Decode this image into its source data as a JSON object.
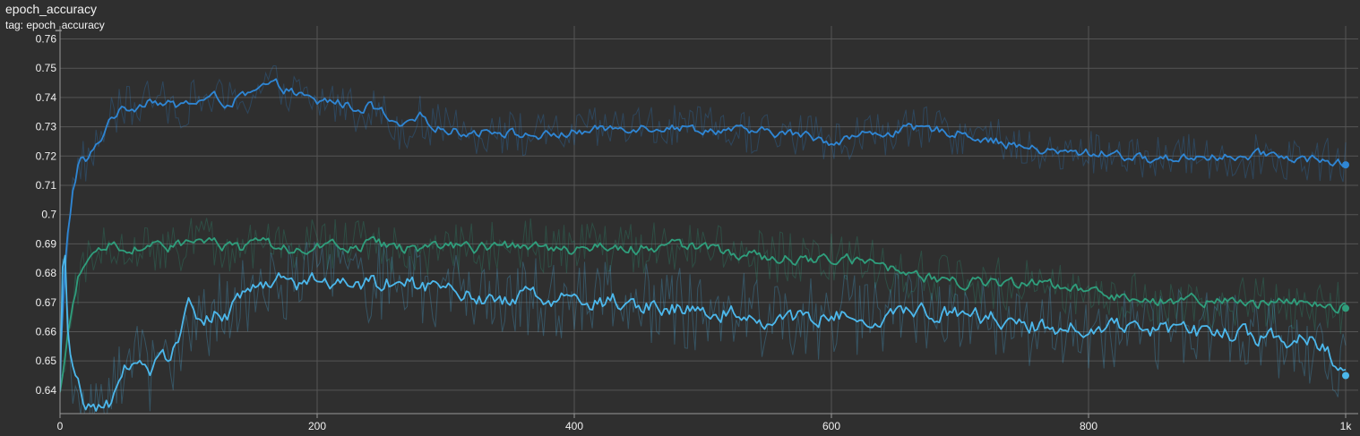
{
  "card": {
    "title": "epoch_accuracy",
    "subtitle": "tag: epoch_accuracy"
  },
  "colors": {
    "background": "#2f2f2f",
    "grid": "#555555",
    "series_1": "#2f86d4",
    "series_2": "#2f9e7c",
    "series_3": "#4cb8ec"
  },
  "chart_data": {
    "type": "line",
    "title": "epoch_accuracy",
    "xlabel": "",
    "ylabel": "",
    "xlim": [
      0,
      1000
    ],
    "ylim": [
      0.632,
      0.762
    ],
    "x_ticks": [
      0,
      200,
      400,
      600,
      800,
      1000
    ],
    "x_tick_labels": [
      "0",
      "200",
      "400",
      "600",
      "800",
      "1k"
    ],
    "y_ticks": [
      0.64,
      0.65,
      0.66,
      0.67,
      0.68,
      0.69,
      0.7,
      0.71,
      0.72,
      0.73,
      0.74,
      0.75,
      0.76
    ],
    "y_tick_labels": [
      "0.64",
      "0.65",
      "0.66",
      "0.67",
      "0.68",
      "0.69",
      "0.7",
      "0.71",
      "0.72",
      "0.73",
      "0.74",
      "0.75",
      "0.76"
    ],
    "grid": true,
    "legend": "none",
    "smoothed": true,
    "series": [
      {
        "color": "#2f86d4",
        "points": [
          [
            0,
            0.648
          ],
          [
            5,
            0.69
          ],
          [
            10,
            0.708
          ],
          [
            15,
            0.719
          ],
          [
            20,
            0.718
          ],
          [
            30,
            0.724
          ],
          [
            40,
            0.734
          ],
          [
            50,
            0.736
          ],
          [
            60,
            0.737
          ],
          [
            70,
            0.74
          ],
          [
            80,
            0.738
          ],
          [
            90,
            0.737
          ],
          [
            100,
            0.738
          ],
          [
            110,
            0.739
          ],
          [
            120,
            0.74
          ],
          [
            130,
            0.738
          ],
          [
            140,
            0.74
          ],
          [
            150,
            0.741
          ],
          [
            160,
            0.744
          ],
          [
            170,
            0.744
          ],
          [
            180,
            0.742
          ],
          [
            190,
            0.74
          ],
          [
            200,
            0.738
          ],
          [
            210,
            0.739
          ],
          [
            220,
            0.738
          ],
          [
            230,
            0.736
          ],
          [
            240,
            0.737
          ],
          [
            250,
            0.735
          ],
          [
            260,
            0.73
          ],
          [
            270,
            0.73
          ],
          [
            280,
            0.733
          ],
          [
            290,
            0.731
          ],
          [
            300,
            0.729
          ],
          [
            320,
            0.728
          ],
          [
            340,
            0.729
          ],
          [
            360,
            0.727
          ],
          [
            380,
            0.727
          ],
          [
            400,
            0.728
          ],
          [
            420,
            0.729
          ],
          [
            440,
            0.73
          ],
          [
            460,
            0.73
          ],
          [
            480,
            0.73
          ],
          [
            500,
            0.729
          ],
          [
            520,
            0.729
          ],
          [
            540,
            0.728
          ],
          [
            560,
            0.728
          ],
          [
            580,
            0.727
          ],
          [
            600,
            0.725
          ],
          [
            620,
            0.727
          ],
          [
            640,
            0.728
          ],
          [
            660,
            0.729
          ],
          [
            680,
            0.729
          ],
          [
            700,
            0.728
          ],
          [
            720,
            0.726
          ],
          [
            740,
            0.724
          ],
          [
            760,
            0.722
          ],
          [
            780,
            0.721
          ],
          [
            800,
            0.721
          ],
          [
            820,
            0.721
          ],
          [
            840,
            0.719
          ],
          [
            860,
            0.719
          ],
          [
            880,
            0.72
          ],
          [
            900,
            0.72
          ],
          [
            920,
            0.719
          ],
          [
            940,
            0.721
          ],
          [
            960,
            0.719
          ],
          [
            980,
            0.719
          ],
          [
            1000,
            0.717
          ]
        ]
      },
      {
        "color": "#2f9e7c",
        "points": [
          [
            0,
            0.639
          ],
          [
            5,
            0.655
          ],
          [
            10,
            0.668
          ],
          [
            15,
            0.68
          ],
          [
            20,
            0.683
          ],
          [
            30,
            0.688
          ],
          [
            40,
            0.69
          ],
          [
            50,
            0.688
          ],
          [
            60,
            0.689
          ],
          [
            70,
            0.69
          ],
          [
            80,
            0.688
          ],
          [
            90,
            0.689
          ],
          [
            100,
            0.69
          ],
          [
            110,
            0.691
          ],
          [
            120,
            0.69
          ],
          [
            130,
            0.689
          ],
          [
            140,
            0.688
          ],
          [
            150,
            0.689
          ],
          [
            160,
            0.69
          ],
          [
            170,
            0.689
          ],
          [
            180,
            0.688
          ],
          [
            190,
            0.689
          ],
          [
            200,
            0.69
          ],
          [
            220,
            0.689
          ],
          [
            240,
            0.69
          ],
          [
            260,
            0.689
          ],
          [
            280,
            0.688
          ],
          [
            300,
            0.689
          ],
          [
            320,
            0.688
          ],
          [
            340,
            0.689
          ],
          [
            360,
            0.69
          ],
          [
            380,
            0.689
          ],
          [
            400,
            0.688
          ],
          [
            420,
            0.689
          ],
          [
            440,
            0.688
          ],
          [
            460,
            0.689
          ],
          [
            480,
            0.69
          ],
          [
            500,
            0.688
          ],
          [
            520,
            0.687
          ],
          [
            540,
            0.686
          ],
          [
            560,
            0.685
          ],
          [
            580,
            0.684
          ],
          [
            600,
            0.685
          ],
          [
            620,
            0.684
          ],
          [
            640,
            0.682
          ],
          [
            660,
            0.68
          ],
          [
            680,
            0.678
          ],
          [
            700,
            0.677
          ],
          [
            720,
            0.677
          ],
          [
            740,
            0.676
          ],
          [
            760,
            0.676
          ],
          [
            780,
            0.675
          ],
          [
            800,
            0.673
          ],
          [
            820,
            0.672
          ],
          [
            840,
            0.672
          ],
          [
            860,
            0.671
          ],
          [
            880,
            0.671
          ],
          [
            900,
            0.67
          ],
          [
            920,
            0.67
          ],
          [
            940,
            0.67
          ],
          [
            960,
            0.67
          ],
          [
            980,
            0.669
          ],
          [
            1000,
            0.668
          ]
        ]
      },
      {
        "color": "#4cb8ec",
        "points": [
          [
            0,
            0.64
          ],
          [
            3,
            0.7
          ],
          [
            6,
            0.66
          ],
          [
            10,
            0.648
          ],
          [
            15,
            0.64
          ],
          [
            20,
            0.632
          ],
          [
            30,
            0.634
          ],
          [
            40,
            0.636
          ],
          [
            50,
            0.65
          ],
          [
            60,
            0.648
          ],
          [
            70,
            0.646
          ],
          [
            80,
            0.65
          ],
          [
            90,
            0.654
          ],
          [
            100,
            0.668
          ],
          [
            110,
            0.664
          ],
          [
            120,
            0.666
          ],
          [
            130,
            0.667
          ],
          [
            140,
            0.67
          ],
          [
            150,
            0.674
          ],
          [
            160,
            0.677
          ],
          [
            170,
            0.677
          ],
          [
            180,
            0.675
          ],
          [
            190,
            0.677
          ],
          [
            200,
            0.678
          ],
          [
            220,
            0.677
          ],
          [
            240,
            0.676
          ],
          [
            260,
            0.677
          ],
          [
            280,
            0.676
          ],
          [
            300,
            0.675
          ],
          [
            320,
            0.673
          ],
          [
            340,
            0.671
          ],
          [
            360,
            0.672
          ],
          [
            380,
            0.671
          ],
          [
            400,
            0.672
          ],
          [
            420,
            0.67
          ],
          [
            440,
            0.671
          ],
          [
            460,
            0.669
          ],
          [
            480,
            0.668
          ],
          [
            500,
            0.667
          ],
          [
            520,
            0.667
          ],
          [
            540,
            0.665
          ],
          [
            560,
            0.664
          ],
          [
            580,
            0.664
          ],
          [
            600,
            0.665
          ],
          [
            620,
            0.665
          ],
          [
            640,
            0.666
          ],
          [
            660,
            0.667
          ],
          [
            680,
            0.667
          ],
          [
            700,
            0.666
          ],
          [
            720,
            0.665
          ],
          [
            740,
            0.664
          ],
          [
            760,
            0.662
          ],
          [
            780,
            0.661
          ],
          [
            800,
            0.661
          ],
          [
            820,
            0.661
          ],
          [
            840,
            0.661
          ],
          [
            860,
            0.66
          ],
          [
            880,
            0.66
          ],
          [
            900,
            0.659
          ],
          [
            920,
            0.659
          ],
          [
            940,
            0.658
          ],
          [
            960,
            0.657
          ],
          [
            980,
            0.656
          ],
          [
            1000,
            0.645
          ]
        ]
      }
    ]
  }
}
